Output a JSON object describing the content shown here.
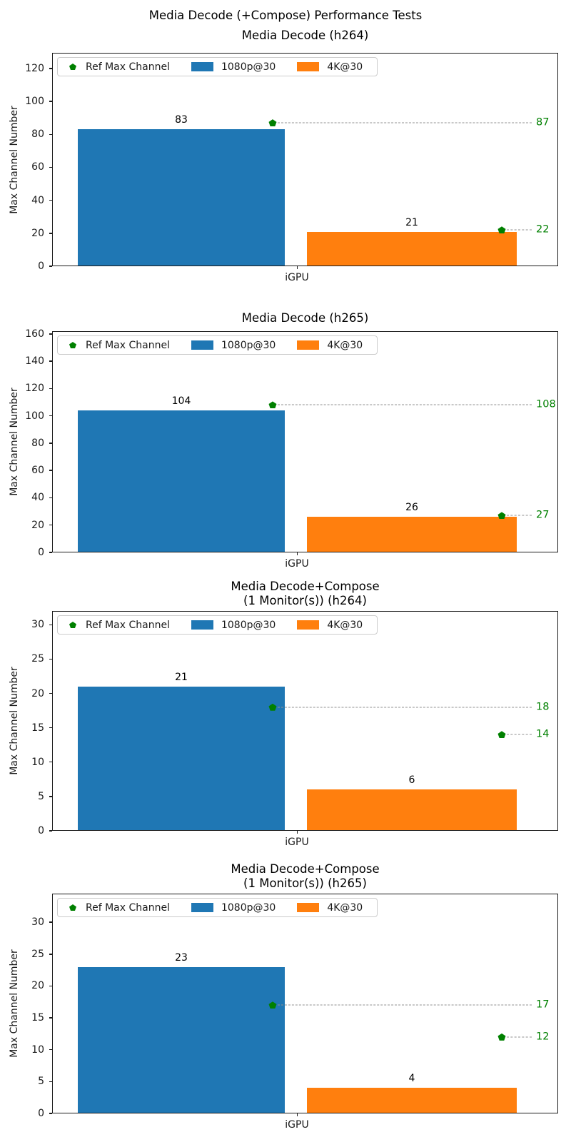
{
  "figure": {
    "suptitle": "Media Decode (+Compose) Performance Tests"
  },
  "colors": {
    "series_1080p": "#1f77b4",
    "series_4k": "#ff7f0e",
    "ref_green": "#008000",
    "dash_gray": "#919191"
  },
  "legend": {
    "ref_label": "Ref Max Channel",
    "series_labels": [
      "1080p@30",
      "4K@30"
    ]
  },
  "chart_data": [
    {
      "type": "bar",
      "title_lines": [
        "Media Decode (h264)"
      ],
      "ylabel": "Max Channel Number",
      "xlabel_categories": [
        "iGPU"
      ],
      "yticks": [
        0,
        20,
        40,
        60,
        80,
        100,
        120
      ],
      "ylim": [
        0,
        129.5
      ],
      "legend_entries": [
        "Ref Max Channel",
        "1080p@30",
        "4K@30"
      ],
      "legend_position": "upper left",
      "series": [
        {
          "name": "1080p@30",
          "color": "#1f77b4",
          "values": [
            83
          ]
        },
        {
          "name": "4K@30",
          "color": "#ff7f0e",
          "values": [
            21
          ]
        }
      ],
      "refs": [
        {
          "label": "Ref Max Channel",
          "series": "1080p@30",
          "value": 87
        },
        {
          "label": "Ref Max Channel",
          "series": "4K@30",
          "value": 22
        }
      ]
    },
    {
      "type": "bar",
      "title_lines": [
        "Media Decode (h265)"
      ],
      "ylabel": "Max Channel Number",
      "xlabel_categories": [
        "iGPU"
      ],
      "yticks": [
        0,
        20,
        40,
        60,
        80,
        100,
        120,
        140,
        160
      ],
      "ylim": [
        0,
        162
      ],
      "legend_entries": [
        "Ref Max Channel",
        "1080p@30",
        "4K@30"
      ],
      "legend_position": "upper left",
      "series": [
        {
          "name": "1080p@30",
          "color": "#1f77b4",
          "values": [
            104
          ]
        },
        {
          "name": "4K@30",
          "color": "#ff7f0e",
          "values": [
            26
          ]
        }
      ],
      "refs": [
        {
          "label": "Ref Max Channel",
          "series": "1080p@30",
          "value": 108
        },
        {
          "label": "Ref Max Channel",
          "series": "4K@30",
          "value": 27
        }
      ]
    },
    {
      "type": "bar",
      "title_lines": [
        "Media Decode+Compose",
        "(1 Monitor(s)) (h264)"
      ],
      "ylabel": "Max Channel Number",
      "xlabel_categories": [
        "iGPU"
      ],
      "yticks": [
        0,
        5,
        10,
        15,
        20,
        25,
        30
      ],
      "ylim": [
        0,
        32
      ],
      "legend_entries": [
        "Ref Max Channel",
        "1080p@30",
        "4K@30"
      ],
      "legend_position": "upper left",
      "series": [
        {
          "name": "1080p@30",
          "color": "#1f77b4",
          "values": [
            21
          ]
        },
        {
          "name": "4K@30",
          "color": "#ff7f0e",
          "values": [
            6
          ]
        }
      ],
      "refs": [
        {
          "label": "Ref Max Channel",
          "series": "1080p@30",
          "value": 18
        },
        {
          "label": "Ref Max Channel",
          "series": "4K@30",
          "value": 14
        }
      ]
    },
    {
      "type": "bar",
      "title_lines": [
        "Media Decode+Compose",
        "(1 Monitor(s)) (h265)"
      ],
      "ylabel": "Max Channel Number",
      "xlabel_categories": [
        "iGPU"
      ],
      "yticks": [
        0,
        5,
        10,
        15,
        20,
        25,
        30
      ],
      "ylim": [
        0,
        34.5
      ],
      "legend_entries": [
        "Ref Max Channel",
        "1080p@30",
        "4K@30"
      ],
      "legend_position": "upper left",
      "series": [
        {
          "name": "1080p@30",
          "color": "#1f77b4",
          "values": [
            23
          ]
        },
        {
          "name": "4K@30",
          "color": "#ff7f0e",
          "values": [
            4
          ]
        }
      ],
      "refs": [
        {
          "label": "Ref Max Channel",
          "series": "1080p@30",
          "value": 17
        },
        {
          "label": "Ref Max Channel",
          "series": "4K@30",
          "value": 12
        }
      ]
    }
  ]
}
